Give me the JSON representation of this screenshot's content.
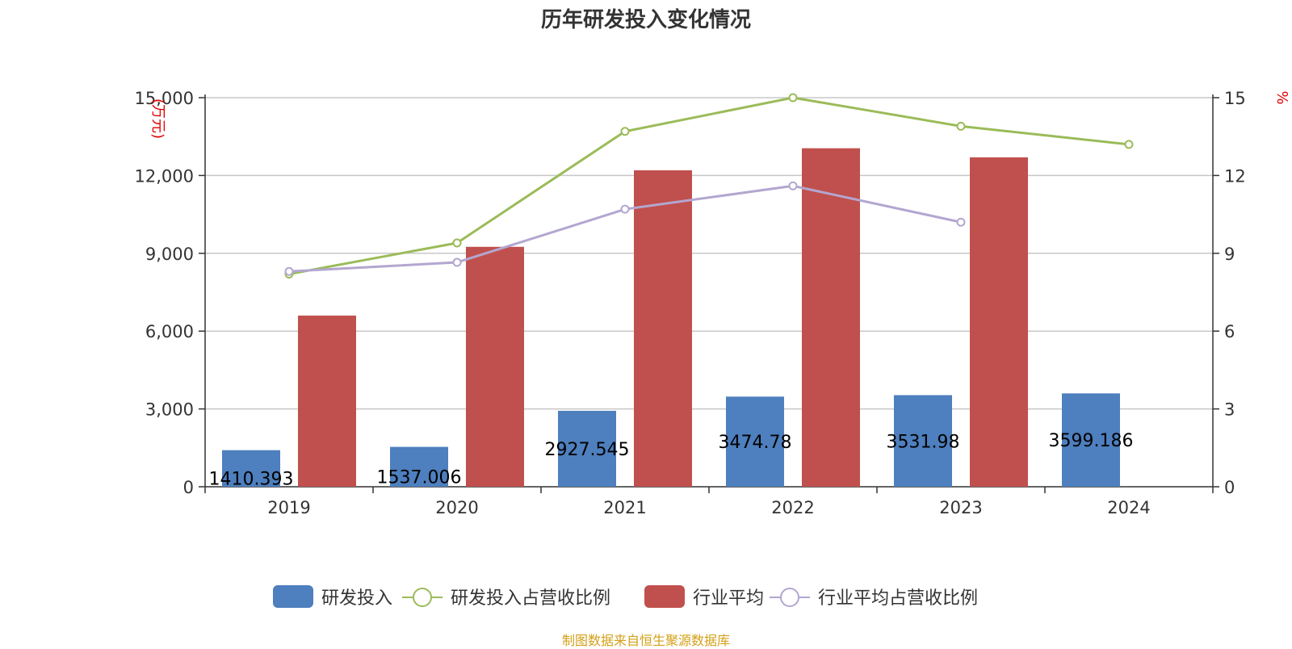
{
  "chart_data": {
    "type": "bar",
    "title": "历年研发投入变化情况",
    "categories": [
      "2019",
      "2020",
      "2021",
      "2022",
      "2023",
      "2024"
    ],
    "left_axis": {
      "unit": "(万元)",
      "ticks": [
        "0",
        "3,000",
        "6,000",
        "9,000",
        "12,000",
        "15,000"
      ],
      "range": [
        0,
        15000
      ]
    },
    "right_axis": {
      "unit": "%",
      "ticks": [
        "0",
        "3",
        "6",
        "9",
        "12",
        "15"
      ],
      "range": [
        0,
        15
      ]
    },
    "grid": true,
    "legend_position": "bottom",
    "series": [
      {
        "name": "研发投入",
        "type": "bar",
        "axis": "left",
        "color": "#4e7fbe",
        "values": [
          1410.393,
          1537.006,
          2927.545,
          3474.78,
          3531.98,
          3599.186
        ],
        "labels": [
          "1410.393",
          "1537.006",
          "2927.545",
          "3474.78",
          "3531.98",
          "3599.186"
        ]
      },
      {
        "name": "研发投入占营收比例",
        "type": "line",
        "axis": "right",
        "color": "#9bbb59",
        "values": [
          8.2,
          9.4,
          13.7,
          15.0,
          13.9,
          13.2
        ]
      },
      {
        "name": "行业平均",
        "type": "bar",
        "axis": "left",
        "color": "#c0504d",
        "values": [
          6600,
          9250,
          12200,
          13050,
          12700,
          null
        ]
      },
      {
        "name": "行业平均占营收比例",
        "type": "line",
        "axis": "right",
        "color": "#b3a6cf",
        "values": [
          8.3,
          8.65,
          10.7,
          11.6,
          10.2,
          null
        ]
      }
    ]
  },
  "source": "制图数据来自恒生聚源数据库"
}
